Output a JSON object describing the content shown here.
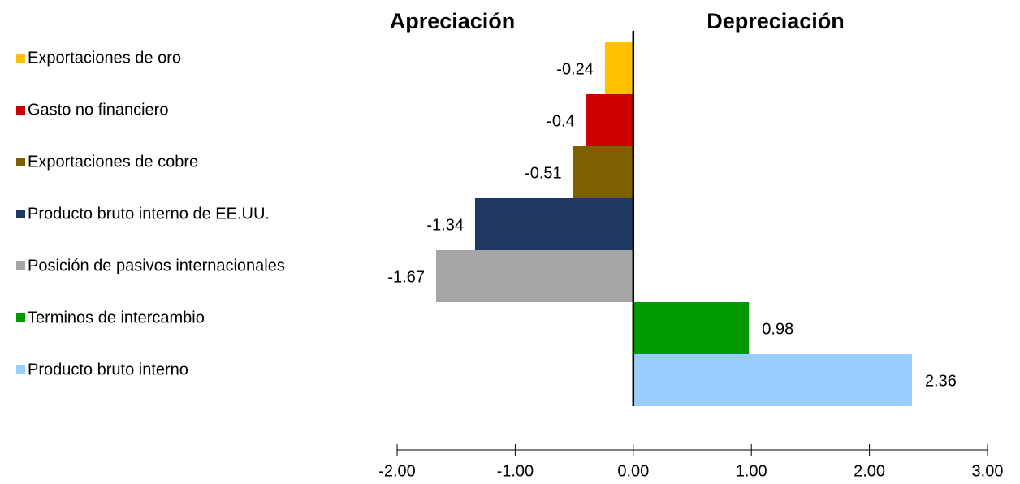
{
  "chart_data": {
    "type": "bar",
    "orientation": "horizontal",
    "annotations": [
      "Apreciación",
      "Depreciación"
    ],
    "categories": [
      "Exportaciones de oro",
      "Gasto no financiero",
      "Exportaciones de cobre",
      "Producto bruto interno de EE.UU.",
      "Posición de pasivos internacionales",
      "Terminos de intercambio",
      "Producto bruto interno"
    ],
    "values": [
      -0.24,
      -0.4,
      -0.51,
      -1.34,
      -1.67,
      0.98,
      2.36
    ],
    "colors": [
      "#ffc000",
      "#cc0000",
      "#7f6000",
      "#1f3864",
      "#a6a6a6",
      "#009900",
      "#99ccff"
    ],
    "xlim": [
      -2,
      3
    ],
    "xticks": [
      {
        "value": -2,
        "label": "-2.00"
      },
      {
        "value": -1,
        "label": "-1.00"
      },
      {
        "value": 0,
        "label": "0.00"
      },
      {
        "value": 1,
        "label": "1.00"
      },
      {
        "value": 2,
        "label": "2.00"
      },
      {
        "value": 3,
        "label": "3.00"
      }
    ],
    "legend": "left"
  }
}
